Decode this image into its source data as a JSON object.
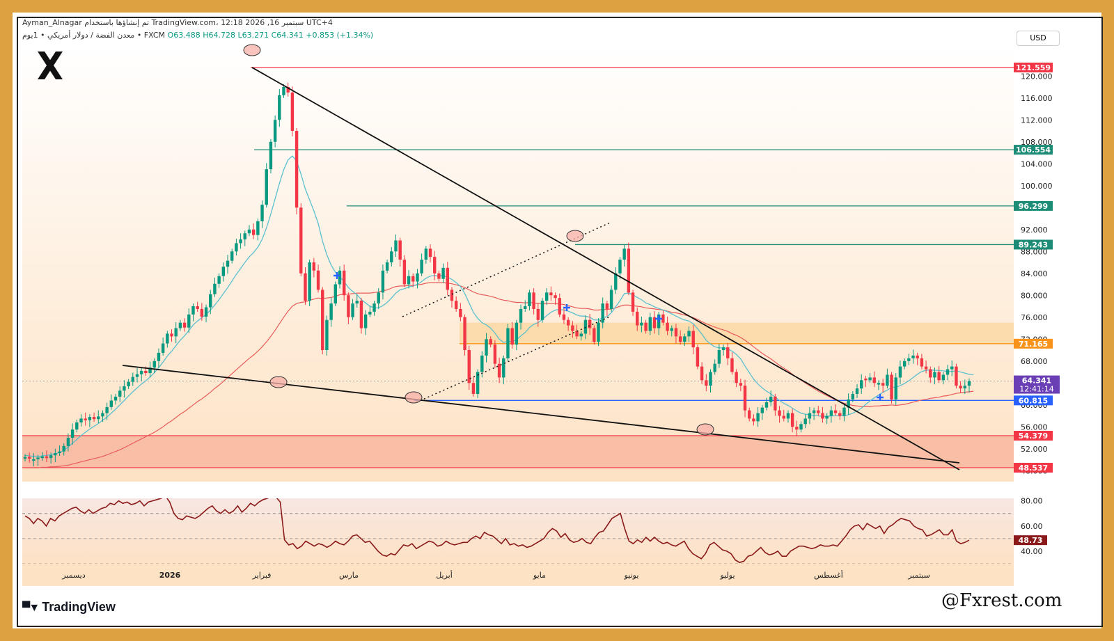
{
  "header": {
    "line1": "Ayman_Alnagar تم إنشاؤها باستخدام TradingView.com، 12:18 2026 ,16 سبتمبر UTC+4",
    "symbol": "معدن الفضة / دولار أمريكي • 1يوم • FXCM",
    "open": "O63.488",
    "high": "H64.728",
    "low": "L63.271",
    "close": "C64.341",
    "change": "+0.853 (+1.34%)"
  },
  "currency_button": "USD",
  "footer": {
    "logo": "TradingView",
    "watermark": "@Fxrest.com"
  },
  "colors": {
    "frame": "#dda13f",
    "up": "#089981",
    "down": "#f23645",
    "ma_fast": "#5bc0cf",
    "ma_slow": "#e85a5a",
    "rsi": "#8b1a1a",
    "support_zone": "#f7b9a0",
    "resistance_zone": "#fcd9a4",
    "h_line": "#1c8c76",
    "blue_line": "#2962ff",
    "red_line": "#f23645",
    "orange_line": "#f7931a"
  },
  "chart_data": [
    {
      "type": "candlestick",
      "title": "معدن الفضة / دولار أمريكي",
      "y_axis_ticks": [
        "120.000",
        "116.000",
        "112.000",
        "108.000",
        "104.000",
        "100.000",
        "96.000",
        "92.000",
        "88.000",
        "84.000",
        "80.000",
        "76.000",
        "72.000",
        "68.000",
        "64.000",
        "60.000",
        "56.000",
        "52.000",
        "48.000"
      ],
      "x_axis_labels": [
        "ديسمبر",
        "2026",
        "فبراير",
        "مارس",
        "أبريل",
        "مايو",
        "يونيو",
        "يوليو",
        "أغسطس",
        "سبتمبر"
      ],
      "ylim": [
        46,
        126
      ],
      "price_levels": [
        {
          "label": "121.559",
          "value": 121.559,
          "color": "#f23645"
        },
        {
          "label": "106.554",
          "value": 106.554,
          "color": "#1c8c76"
        },
        {
          "label": "96.299",
          "value": 96.299,
          "color": "#1c8c76"
        },
        {
          "label": "89.243",
          "value": 89.243,
          "color": "#1c8c76"
        },
        {
          "label": "71.165",
          "value": 71.165,
          "color": "#f7931a"
        },
        {
          "label": "60.815",
          "value": 60.815,
          "color": "#2962ff"
        },
        {
          "label": "54.379",
          "value": 54.379,
          "color": "#f23645"
        },
        {
          "label": "48.537",
          "value": 48.537,
          "color": "#f23645"
        }
      ],
      "last_price": {
        "value": 64.341,
        "label": "64.341",
        "countdown": "12:41:14"
      },
      "zones": [
        {
          "name": "resistance",
          "from": 71.165,
          "to": 75.0
        },
        {
          "name": "support",
          "from": 48.537,
          "to": 54.379
        }
      ],
      "close_series": [
        50.5,
        50.2,
        50.1,
        50.4,
        50.6,
        50.3,
        50.8,
        51.2,
        51.5,
        52.5,
        54.0,
        55.5,
        56.8,
        57.5,
        57.2,
        57.8,
        57.4,
        57.9,
        58.5,
        59.6,
        60.8,
        61.5,
        62.6,
        63.4,
        64.2,
        65.1,
        65.6,
        66.2,
        65.8,
        66.8,
        68.0,
        69.5,
        71.2,
        73.0,
        72.5,
        74.0,
        75.0,
        74.1,
        76.5,
        78.0,
        77.5,
        76.1,
        77.8,
        80.2,
        82.1,
        83.5,
        85.2,
        86.3,
        88.0,
        89.5,
        90.2,
        91.3,
        92.0,
        91.0,
        93.5,
        96.5,
        103.0,
        108.0,
        112.0,
        116.5,
        118.0,
        117.0,
        110.0,
        96.0,
        84.0,
        79.0,
        86.0,
        84.5,
        81.0,
        70.0,
        75.5,
        78.5,
        82.0,
        84.5,
        80.0,
        76.0,
        78.5,
        79.0,
        74.0,
        76.5,
        77.0,
        78.5,
        80.5,
        84.5,
        86.0,
        88.0,
        90.0,
        86.5,
        82.0,
        83.5,
        82.5,
        84.0,
        86.5,
        88.5,
        87.0,
        84.0,
        83.0,
        85.0,
        81.0,
        79.0,
        77.5,
        76.0,
        70.0,
        64.0,
        62.0,
        66.0,
        69.0,
        72.0,
        71.0,
        67.5,
        65.0,
        68.5,
        74.0,
        71.0,
        75.0,
        77.5,
        78.0,
        80.5,
        77.5,
        75.5,
        79.0,
        80.5,
        80.0,
        79.5,
        76.5,
        75.5,
        74.5,
        73.5,
        72.5,
        73.0,
        75.5,
        74.0,
        71.5,
        75.0,
        78.5,
        77.5,
        81.0,
        84.0,
        86.5,
        88.5,
        80.5,
        77.0,
        74.5,
        75.0,
        73.5,
        76.0,
        74.0,
        76.5,
        75.0,
        73.5,
        74.0,
        72.5,
        71.5,
        72.5,
        73.5,
        70.5,
        67.0,
        64.5,
        63.5,
        66.0,
        67.5,
        70.0,
        70.5,
        68.5,
        66.0,
        64.0,
        63.5,
        59.0,
        57.5,
        57.0,
        58.5,
        59.5,
        60.5,
        61.5,
        59.0,
        58.0,
        57.5,
        58.5,
        56.0,
        55.5,
        56.5,
        57.5,
        58.5,
        59.0,
        58.5,
        57.5,
        58.0,
        59.0,
        58.5,
        58.0,
        59.5,
        61.0,
        62.0,
        63.0,
        64.5,
        64.5,
        65.0,
        64.0,
        64.0,
        63.5,
        65.5,
        61.0,
        65.0,
        67.0,
        68.0,
        68.5,
        69.0,
        68.5,
        67.0,
        66.5,
        65.0,
        66.0,
        64.5,
        65.5,
        66.5,
        67.0,
        63.5,
        63.0,
        63.5,
        64.341
      ],
      "ma_fast_series": [
        50.8,
        50.7,
        50.6,
        50.6,
        50.7,
        50.8,
        50.9,
        51.1,
        51.3,
        51.7,
        52.3,
        53.0,
        53.7,
        54.4,
        55.0,
        55.6,
        56.1,
        56.6,
        57.2,
        57.8,
        58.5,
        59.2,
        60.0,
        60.8,
        61.6,
        62.4,
        63.1,
        63.8,
        64.4,
        65.1,
        65.9,
        66.8,
        67.8,
        68.9,
        69.8,
        70.8,
        71.8,
        72.6,
        73.6,
        74.6,
        75.3,
        75.9,
        76.5,
        77.3,
        78.2,
        79.2,
        80.3,
        81.4,
        82.6,
        83.8,
        84.9,
        86.0,
        87.0,
        87.8,
        88.8,
        90.2,
        92.3,
        94.8,
        97.6,
        100.4,
        102.9,
        104.7,
        105.4,
        104.5,
        102.1,
        99.4,
        97.4,
        95.4,
        93.1,
        89.9,
        87.4,
        85.5,
        84.2,
        83.4,
        82.5,
        81.4,
        80.7,
        80.1,
        79.2,
        78.6,
        78.0,
        77.7,
        77.7,
        78.1,
        78.7,
        79.5,
        80.4,
        81.0,
        81.2,
        81.5,
        81.7,
        82.0,
        82.5,
        83.1,
        83.5,
        83.6,
        83.5,
        83.6,
        83.3,
        82.9,
        82.3,
        81.6,
        80.3,
        78.6,
        76.9,
        75.8,
        75.0,
        74.6,
        74.0,
        73.1,
        72.0,
        71.4,
        71.6,
        71.5,
        71.9,
        72.6,
        73.2,
        74.1,
        74.7,
        75.0,
        75.6,
        76.3,
        76.9,
        77.3,
        77.4,
        77.3,
        77.1,
        76.8,
        76.4,
        76.2,
        76.2,
        76.0,
        75.5,
        75.5,
        75.9,
        76.1,
        76.8,
        77.9,
        79.0,
        80.3,
        80.4,
        80.1,
        79.6,
        79.2,
        78.6,
        78.3,
        77.9,
        77.6,
        77.3,
        77.0,
        76.6,
        76.2,
        75.8,
        75.5,
        75.3,
        74.8,
        73.9,
        72.9,
        71.8,
        71.1,
        70.6,
        70.4,
        70.4,
        70.2,
        69.8,
        69.2,
        68.4,
        67.1,
        65.9,
        64.7,
        63.8,
        63.1,
        62.5,
        62.0,
        61.4,
        60.8,
        60.3,
        59.9,
        59.4,
        58.9,
        58.5,
        58.3,
        58.2,
        58.1,
        58.0,
        57.9,
        57.9,
        58.0,
        58.0,
        58.0,
        58.0,
        58.2,
        58.5,
        58.9,
        59.4,
        60.1,
        60.7,
        61.3,
        61.8,
        62.3,
        62.7,
        63.2,
        63.2,
        63.5,
        63.9,
        64.4,
        65.0,
        65.6,
        66.1,
        66.3,
        66.4,
        66.3,
        66.3,
        66.2,
        66.1,
        66.1,
        66.2,
        66.0,
        65.8,
        65.6,
        65.5
      ],
      "ma_slow_series": [
        48.5,
        48.5,
        48.5,
        48.5,
        48.6,
        48.6,
        48.7,
        48.7,
        48.8,
        48.9,
        49.0,
        49.2,
        49.4,
        49.6,
        49.8,
        50.0,
        50.2,
        50.4,
        50.6,
        50.9,
        51.2,
        51.5,
        51.8,
        52.2,
        52.6,
        53.0,
        53.4,
        53.8,
        54.2,
        54.6,
        55.0,
        55.5,
        56.0,
        56.6,
        57.1,
        57.7,
        58.3,
        58.8,
        59.4,
        60.0,
        60.6,
        61.1,
        61.7,
        62.3,
        63.0,
        63.6,
        64.3,
        65.0,
        65.7,
        66.4,
        67.1,
        67.8,
        68.5,
        69.1,
        69.8,
        70.6,
        71.5,
        72.5,
        73.6,
        74.8,
        76.0,
        77.1,
        78.0,
        78.5,
        78.7,
        78.8,
        79.1,
        79.3,
        79.5,
        79.4,
        79.5,
        79.6,
        79.8,
        80.1,
        80.2,
        80.2,
        80.3,
        80.4,
        80.4,
        80.4,
        80.4,
        80.5,
        80.6,
        80.8,
        81.0,
        81.3,
        81.6,
        81.7,
        81.7,
        81.8,
        81.8,
        81.9,
        82.0,
        82.2,
        82.3,
        82.3,
        82.3,
        82.3,
        82.2,
        82.1,
        81.9,
        81.7,
        81.4,
        81.0,
        80.6,
        80.3,
        80.1,
        80.0,
        79.8,
        79.6,
        79.3,
        79.1,
        79.0,
        78.8,
        78.7,
        78.7,
        78.6,
        78.7,
        78.6,
        78.5,
        78.5,
        78.5,
        78.5,
        78.5,
        78.4,
        78.3,
        78.1,
        77.9,
        77.7,
        77.6,
        77.6,
        77.5,
        77.3,
        77.3,
        77.4,
        77.4,
        77.5,
        77.7,
        78.0,
        78.2,
        78.2,
        78.1,
        78.0,
        77.9,
        77.7,
        77.6,
        77.5,
        77.4,
        77.3,
        77.1,
        76.9,
        76.8,
        76.6,
        76.4,
        76.2,
        75.9,
        75.6,
        75.2,
        74.8,
        74.5,
        74.2,
        73.9,
        73.7,
        73.4,
        73.0,
        72.7,
        72.3,
        71.8,
        71.2,
        70.6,
        70.0,
        69.4,
        68.9,
        68.4,
        67.8,
        67.2,
        66.7,
        66.2,
        65.6,
        65.0,
        64.5,
        64.0,
        63.5,
        63.0,
        62.5,
        62.1,
        61.7,
        61.3,
        60.9,
        60.6,
        60.3,
        60.1,
        59.9,
        59.8,
        59.7,
        59.7,
        59.7,
        59.8,
        59.8,
        59.9,
        59.9,
        60.0,
        59.9,
        60.0,
        60.1,
        60.3,
        60.5,
        60.7,
        60.9,
        61.0,
        61.2,
        61.3,
        61.4,
        61.6,
        61.7,
        61.9,
        62.1,
        62.2,
        62.3,
        62.4,
        62.5
      ]
    },
    {
      "type": "line",
      "title": "RSI",
      "y_axis_ticks": [
        "80.00",
        "60.00",
        "40.00"
      ],
      "ylim": [
        30,
        82
      ],
      "bands": [
        70,
        50,
        30
      ],
      "last_value_label": "48.73",
      "values": [
        68,
        66,
        62,
        66,
        64,
        60,
        66,
        64,
        68,
        70,
        72,
        74,
        75,
        72,
        70,
        73,
        70,
        72,
        74,
        75,
        78,
        77,
        80,
        78,
        79,
        77,
        78,
        80,
        76,
        79,
        80,
        81,
        82,
        84,
        79,
        70,
        66,
        65,
        68,
        67,
        66,
        68,
        71,
        74,
        76,
        72,
        70,
        73,
        70,
        72,
        76,
        71,
        74,
        78,
        76,
        79,
        81,
        82,
        84,
        83,
        79,
        49,
        45,
        46,
        42,
        44,
        48,
        46,
        44,
        46,
        45,
        43,
        45,
        48,
        46,
        45,
        48,
        52,
        53,
        50,
        47,
        48,
        44,
        40,
        37,
        36,
        38,
        37,
        41,
        45,
        44,
        46,
        42,
        44,
        46,
        48,
        47,
        44,
        45,
        48,
        46,
        45,
        46,
        47,
        47,
        50,
        52,
        50,
        55,
        53,
        52,
        49,
        46,
        50,
        45,
        46,
        44,
        45,
        43,
        44,
        46,
        48,
        50,
        55,
        58,
        56,
        51,
        54,
        49,
        47,
        48,
        50,
        47,
        46,
        51,
        55,
        56,
        61,
        66,
        68,
        70,
        58,
        48,
        46,
        49,
        47,
        51,
        48,
        51,
        48,
        46,
        47,
        45,
        44,
        46,
        48,
        42,
        38,
        36,
        34,
        38,
        45,
        47,
        44,
        41,
        40,
        38,
        33,
        31,
        32,
        36,
        37,
        40,
        43,
        39,
        37,
        38,
        40,
        36,
        36,
        40,
        42,
        44,
        44,
        43,
        42,
        43,
        45,
        44,
        44,
        45,
        44,
        48,
        52,
        57,
        60,
        61,
        57,
        62,
        60,
        58,
        60,
        54,
        59,
        61,
        64,
        66,
        65,
        64,
        60,
        58,
        57,
        52,
        53,
        55,
        57,
        53,
        53,
        57,
        48,
        46,
        47,
        48.73
      ]
    }
  ]
}
